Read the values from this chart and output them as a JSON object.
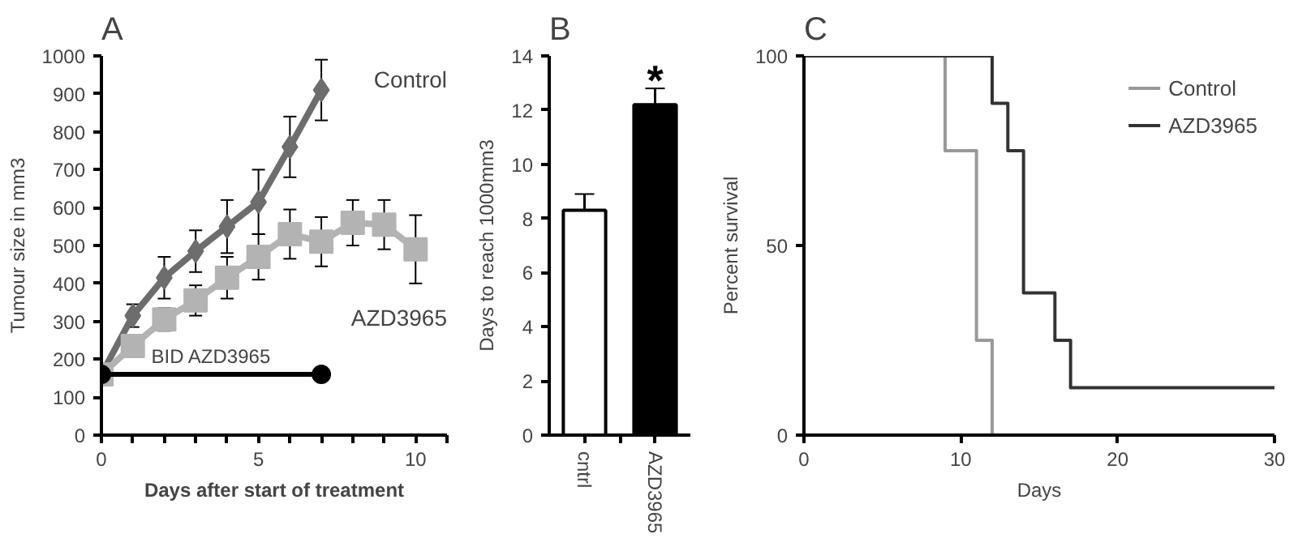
{
  "chart_data": [
    {
      "type": "line",
      "title": "A",
      "xlabel": "Days after start of treatment",
      "ylabel": "Tumour size in mm3",
      "xlim": [
        0,
        11
      ],
      "ylim": [
        0,
        1000
      ],
      "xticks": [
        0,
        {
          "value": 1,
          "label": null
        },
        {
          "value": 2,
          "label": null
        },
        {
          "value": 3,
          "label": null
        },
        {
          "value": 4,
          "label": null
        },
        5,
        {
          "value": 6,
          "label": null
        },
        {
          "value": 7,
          "label": null
        },
        {
          "value": 8,
          "label": null
        },
        {
          "value": 9,
          "label": null
        },
        10,
        {
          "value": 11,
          "label": null
        }
      ],
      "yticks": [
        0,
        100,
        200,
        300,
        400,
        500,
        600,
        700,
        800,
        900,
        1000
      ],
      "grid": false,
      "series": [
        {
          "name": "Control",
          "color": "#6d6d6d",
          "marker": "diamond",
          "x": [
            0,
            1,
            2,
            3,
            4,
            5,
            6,
            7
          ],
          "values": [
            160,
            315,
            415,
            485,
            550,
            615,
            760,
            910
          ],
          "errors": [
            null,
            30,
            55,
            55,
            70,
            85,
            80,
            80
          ]
        },
        {
          "name": "AZD3965",
          "color": "#b3b3b3",
          "marker": "square",
          "x": [
            0,
            1,
            2,
            3,
            4,
            5,
            6,
            7,
            8,
            9,
            10
          ],
          "values": [
            160,
            235,
            305,
            355,
            415,
            470,
            530,
            510,
            560,
            555,
            490
          ],
          "errors": [
            null,
            null,
            30,
            40,
            55,
            60,
            65,
            65,
            60,
            65,
            90
          ]
        },
        {
          "color": "#000000",
          "marker": "circle",
          "x": [
            0,
            7
          ],
          "values": [
            160,
            160
          ]
        }
      ],
      "annotations": [
        {
          "text": "BID AZD3965",
          "x": 3.5,
          "y": 160
        }
      ]
    },
    {
      "type": "bar",
      "title": "B",
      "ylabel": "Days to reach 1000mm3",
      "categories": [
        "cntrl",
        "AZD3965"
      ],
      "values": [
        8.3,
        12.2
      ],
      "errors": [
        0.6,
        0.6
      ],
      "colors": [
        "#ffffff",
        "#000000"
      ],
      "ylim": [
        0,
        14
      ],
      "yticks": [
        0,
        2,
        4,
        6,
        8,
        10,
        12,
        14
      ],
      "grid": false,
      "annotations": [
        "*"
      ]
    },
    {
      "type": "step",
      "title": "C",
      "xlabel": "Days",
      "ylabel": "Percent survival",
      "xlim": [
        0,
        30
      ],
      "ylim": [
        0,
        100
      ],
      "xticks": [
        0,
        10,
        20,
        30
      ],
      "yticks": [
        0,
        50,
        100
      ],
      "grid": false,
      "legend": "top right",
      "series": [
        {
          "name": "Control",
          "color": "#999999",
          "x": [
            0,
            9,
            11,
            12
          ],
          "values": [
            100,
            75,
            25,
            0
          ]
        },
        {
          "name": "AZD3965",
          "color": "#333333",
          "x": [
            0,
            12,
            13,
            14,
            16,
            17,
            30
          ],
          "values": [
            100,
            87.5,
            75,
            37.5,
            25,
            12.5,
            12.5
          ]
        }
      ]
    }
  ]
}
